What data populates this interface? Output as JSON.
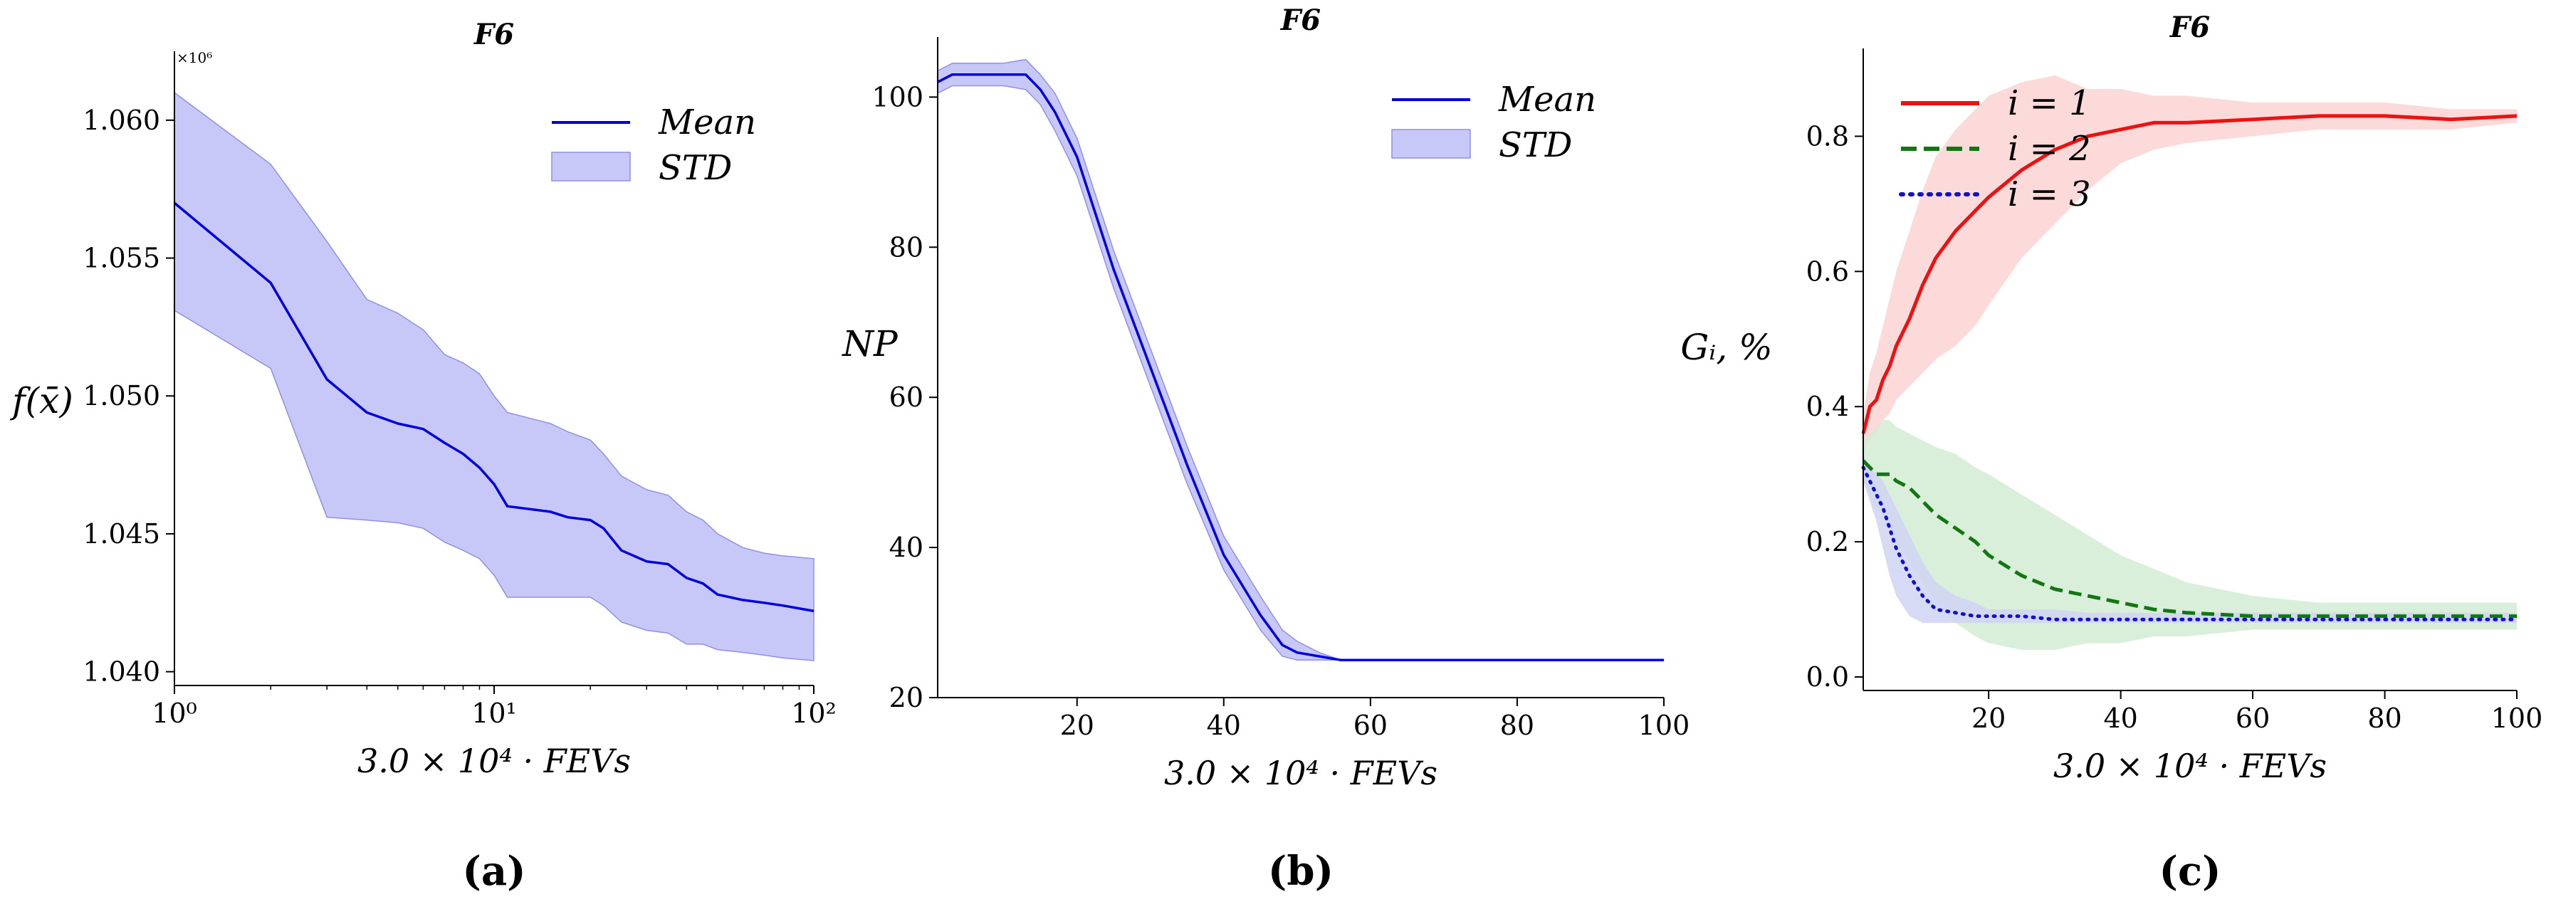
{
  "chart_data": [
    {
      "type": "line",
      "title": "F6",
      "panel_label": "(a)",
      "xlabel": "3.0 × 10⁴ · FEVs",
      "ylabel": "f(x̄)",
      "x_scale": "log",
      "xlim": [
        1,
        100
      ],
      "ylim": [
        1.0395,
        1.0625
      ],
      "y_multiplier": "×10⁶",
      "x_ticks": [
        1,
        10,
        100
      ],
      "x_tick_labels": [
        "10⁰",
        "10¹",
        "10²"
      ],
      "y_ticks": [
        1.04,
        1.045,
        1.05,
        1.055,
        1.06
      ],
      "y_tick_labels": [
        "1.040",
        "1.045",
        "1.050",
        "1.055",
        "1.060"
      ],
      "legend_position": "top-right",
      "series": [
        {
          "name": "Mean",
          "color": "#0000dd",
          "x": [
            1,
            2,
            3,
            4,
            5,
            6,
            7,
            8,
            9,
            10,
            11,
            15,
            17,
            20,
            22,
            25,
            30,
            35,
            40,
            45,
            50,
            60,
            70,
            80,
            100
          ],
          "y": [
            1.057,
            1.0541,
            1.0506,
            1.0494,
            1.049,
            1.0488,
            1.0483,
            1.0479,
            1.0474,
            1.0468,
            1.046,
            1.0458,
            1.0456,
            1.0455,
            1.0452,
            1.0444,
            1.044,
            1.0439,
            1.0434,
            1.0432,
            1.0428,
            1.0426,
            1.0425,
            1.0424,
            1.0422
          ]
        },
        {
          "name": "STD",
          "color": "#c8c8f8",
          "kind": "band",
          "x": [
            1,
            2,
            3,
            4,
            5,
            6,
            7,
            8,
            9,
            10,
            11,
            15,
            17,
            20,
            22,
            25,
            30,
            35,
            40,
            45,
            50,
            60,
            70,
            80,
            100
          ],
          "lower": [
            1.0531,
            1.051,
            1.0456,
            1.0455,
            1.0454,
            1.0452,
            1.0447,
            1.0444,
            1.0441,
            1.0435,
            1.0427,
            1.0427,
            1.0427,
            1.0427,
            1.0424,
            1.0418,
            1.0415,
            1.0414,
            1.041,
            1.041,
            1.0408,
            1.0407,
            1.0406,
            1.0405,
            1.0404
          ],
          "upper": [
            1.061,
            1.0584,
            1.0556,
            1.0535,
            1.053,
            1.0524,
            1.0515,
            1.0512,
            1.0508,
            1.05,
            1.0494,
            1.049,
            1.0487,
            1.0484,
            1.0479,
            1.0471,
            1.0466,
            1.0464,
            1.0458,
            1.0455,
            1.045,
            1.0445,
            1.0443,
            1.0442,
            1.0441
          ]
        }
      ]
    },
    {
      "type": "line",
      "title": "F6",
      "panel_label": "(b)",
      "xlabel": "3.0 × 10⁴ · FEVs",
      "ylabel": "NP",
      "xlim": [
        1,
        100
      ],
      "ylim": [
        20,
        108
      ],
      "x_ticks": [
        20,
        40,
        60,
        80,
        100
      ],
      "y_ticks": [
        20,
        40,
        60,
        80,
        100
      ],
      "legend_position": "top-right",
      "series": [
        {
          "name": "Mean",
          "color": "#0000dd",
          "x": [
            1,
            3,
            6,
            10,
            13,
            15,
            17,
            20,
            25,
            30,
            35,
            40,
            45,
            48,
            50,
            53,
            56,
            60,
            70,
            80,
            90,
            100
          ],
          "y": [
            102,
            103,
            103,
            103,
            103,
            101,
            98,
            92,
            77,
            64,
            51,
            39,
            31,
            27,
            26,
            25.5,
            25,
            25,
            25,
            25,
            25,
            25
          ]
        },
        {
          "name": "STD",
          "color": "#c8c8f8",
          "kind": "band",
          "x": [
            1,
            3,
            6,
            10,
            13,
            15,
            17,
            20,
            25,
            30,
            35,
            40,
            45,
            48,
            50,
            53,
            56,
            60,
            70,
            80,
            90,
            100
          ],
          "lower": [
            100.5,
            101.5,
            101.5,
            101.5,
            101,
            99,
            95.5,
            89.5,
            74.5,
            61.5,
            48.5,
            37,
            29,
            25.5,
            25,
            25,
            25,
            25,
            25,
            25,
            25,
            25
          ],
          "upper": [
            103.5,
            104.5,
            104.5,
            104.5,
            105,
            103,
            100.5,
            94.5,
            79.5,
            66.5,
            53.5,
            41.5,
            33.5,
            29,
            27.5,
            26,
            25,
            25,
            25,
            25,
            25,
            25
          ]
        }
      ]
    },
    {
      "type": "line",
      "title": "F6",
      "panel_label": "(c)",
      "xlabel": "3.0 × 10⁴ · FEVs",
      "ylabel": "Gᵢ, %",
      "xlim": [
        1,
        100
      ],
      "ylim": [
        -0.02,
        0.93
      ],
      "x_ticks": [
        20,
        40,
        60,
        80,
        100
      ],
      "y_ticks": [
        0.0,
        0.2,
        0.4,
        0.6,
        0.8
      ],
      "y_tick_labels": [
        "0.0",
        "0.2",
        "0.4",
        "0.6",
        "0.8"
      ],
      "legend_position": "top-left",
      "series": [
        {
          "name": "i = 1",
          "color": "#ee1111",
          "band_color": "#fbd3d3",
          "style": "solid",
          "x": [
            1,
            2,
            3,
            4,
            5,
            6,
            8,
            10,
            12,
            15,
            18,
            20,
            25,
            30,
            35,
            40,
            45,
            50,
            60,
            70,
            80,
            90,
            100
          ],
          "y": [
            0.36,
            0.4,
            0.41,
            0.44,
            0.46,
            0.49,
            0.53,
            0.58,
            0.62,
            0.66,
            0.69,
            0.71,
            0.75,
            0.78,
            0.8,
            0.81,
            0.82,
            0.82,
            0.825,
            0.83,
            0.83,
            0.825,
            0.83
          ],
          "lower": [
            0.33,
            0.35,
            0.36,
            0.38,
            0.39,
            0.41,
            0.43,
            0.45,
            0.47,
            0.49,
            0.52,
            0.55,
            0.62,
            0.67,
            0.72,
            0.76,
            0.78,
            0.79,
            0.8,
            0.81,
            0.81,
            0.81,
            0.82
          ],
          "upper": [
            0.39,
            0.45,
            0.48,
            0.52,
            0.56,
            0.6,
            0.66,
            0.72,
            0.77,
            0.81,
            0.84,
            0.86,
            0.88,
            0.89,
            0.87,
            0.87,
            0.86,
            0.86,
            0.85,
            0.85,
            0.85,
            0.84,
            0.84
          ]
        },
        {
          "name": "i = 2",
          "color": "#117711",
          "band_color": "#d3ecd3",
          "style": "dashed",
          "x": [
            1,
            2,
            3,
            4,
            5,
            6,
            8,
            10,
            12,
            15,
            18,
            20,
            25,
            30,
            35,
            40,
            45,
            50,
            60,
            70,
            80,
            90,
            100
          ],
          "y": [
            0.32,
            0.31,
            0.3,
            0.3,
            0.3,
            0.29,
            0.28,
            0.26,
            0.24,
            0.22,
            0.2,
            0.18,
            0.15,
            0.13,
            0.12,
            0.11,
            0.1,
            0.095,
            0.09,
            0.09,
            0.09,
            0.09,
            0.09
          ],
          "lower": [
            0.29,
            0.27,
            0.25,
            0.24,
            0.22,
            0.2,
            0.17,
            0.14,
            0.11,
            0.08,
            0.06,
            0.05,
            0.04,
            0.04,
            0.05,
            0.05,
            0.06,
            0.06,
            0.07,
            0.07,
            0.07,
            0.07,
            0.07
          ],
          "upper": [
            0.35,
            0.36,
            0.37,
            0.38,
            0.38,
            0.37,
            0.36,
            0.35,
            0.34,
            0.33,
            0.31,
            0.3,
            0.27,
            0.24,
            0.21,
            0.18,
            0.16,
            0.14,
            0.12,
            0.11,
            0.11,
            0.11,
            0.11
          ]
        },
        {
          "name": "i = 3",
          "color": "#1111cc",
          "band_color": "#cfd3f2",
          "style": "dotted",
          "x": [
            1,
            2,
            3,
            4,
            5,
            6,
            8,
            10,
            12,
            15,
            18,
            20,
            25,
            30,
            35,
            40,
            45,
            50,
            60,
            70,
            80,
            90,
            100
          ],
          "y": [
            0.31,
            0.29,
            0.27,
            0.25,
            0.22,
            0.19,
            0.15,
            0.12,
            0.1,
            0.095,
            0.09,
            0.09,
            0.09,
            0.085,
            0.085,
            0.085,
            0.085,
            0.085,
            0.085,
            0.085,
            0.085,
            0.085,
            0.085
          ],
          "lower": [
            0.29,
            0.26,
            0.23,
            0.19,
            0.15,
            0.12,
            0.09,
            0.08,
            0.08,
            0.08,
            0.08,
            0.08,
            0.08,
            0.08,
            0.08,
            0.08,
            0.08,
            0.08,
            0.08,
            0.08,
            0.08,
            0.08,
            0.08
          ],
          "upper": [
            0.33,
            0.31,
            0.3,
            0.29,
            0.27,
            0.25,
            0.21,
            0.17,
            0.14,
            0.12,
            0.11,
            0.1,
            0.1,
            0.1,
            0.095,
            0.095,
            0.095,
            0.095,
            0.095,
            0.095,
            0.095,
            0.095,
            0.095
          ]
        }
      ]
    }
  ]
}
